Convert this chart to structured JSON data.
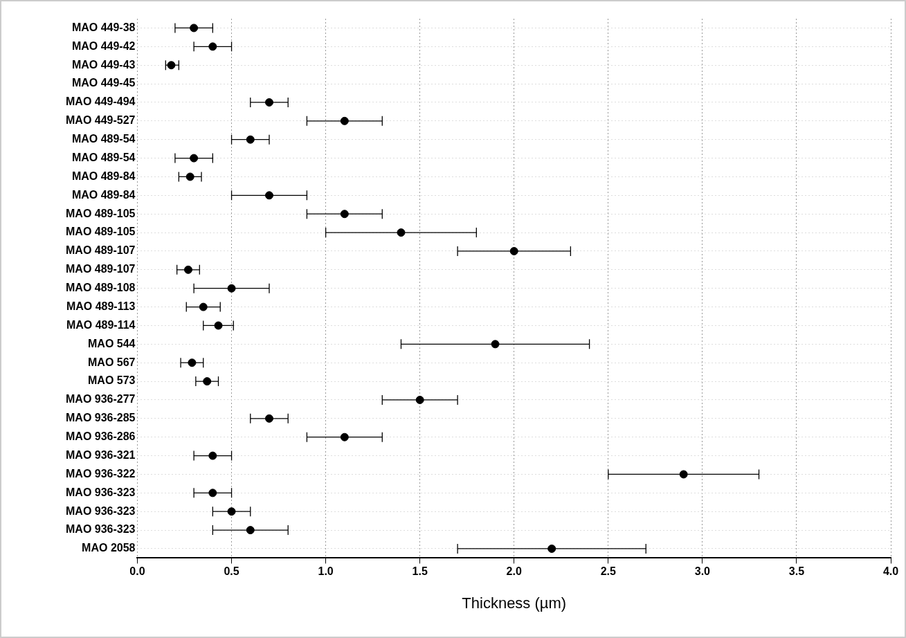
{
  "chart_data": {
    "type": "scatter",
    "orientation": "horizontal",
    "xlabel": "Thickness (µm)",
    "categories": [
      "MAO 449-38",
      "MAO 449-42",
      "MAO 449-43",
      "MAO 449-45",
      "MAO 449-494",
      "MAO 449-527",
      "MAO 489-54",
      "MAO 489-54",
      "MAO 489-84",
      "MAO 489-84",
      "MAO 489-105",
      "MAO 489-105",
      "MAO 489-107",
      "MAO 489-107",
      "MAO 489-108",
      "MAO 489-113",
      "MAO 489-114",
      "MAO 544",
      "MAO 567",
      "MAO 573",
      "MAO 936-277",
      "MAO 936-285",
      "MAO 936-286",
      "MAO 936-321",
      "MAO 936-322",
      "MAO 936-323",
      "MAO 936-323",
      "MAO 936-323",
      "MAO 2058"
    ],
    "values": [
      0.3,
      0.4,
      0.18,
      null,
      0.7,
      1.1,
      0.6,
      0.3,
      0.28,
      0.7,
      1.1,
      1.4,
      2.0,
      0.27,
      0.5,
      0.35,
      0.43,
      1.9,
      0.29,
      0.37,
      1.5,
      0.7,
      1.1,
      0.4,
      2.9,
      0.4,
      0.5,
      0.6,
      2.2
    ],
    "errors": [
      [
        0.2,
        0.4
      ],
      [
        0.3,
        0.5
      ],
      [
        0.15,
        0.22
      ],
      null,
      [
        0.6,
        0.8
      ],
      [
        0.9,
        1.3
      ],
      [
        0.5,
        0.7
      ],
      [
        0.2,
        0.4
      ],
      [
        0.22,
        0.34
      ],
      [
        0.5,
        0.9
      ],
      [
        0.9,
        1.3
      ],
      [
        1.0,
        1.8
      ],
      [
        1.7,
        2.3
      ],
      [
        0.21,
        0.33
      ],
      [
        0.3,
        0.7
      ],
      [
        0.26,
        0.44
      ],
      [
        0.35,
        0.51
      ],
      [
        1.4,
        2.4
      ],
      [
        0.23,
        0.35
      ],
      [
        0.31,
        0.43
      ],
      [
        1.3,
        1.7
      ],
      [
        0.6,
        0.8
      ],
      [
        0.9,
        1.3
      ],
      [
        0.3,
        0.5
      ],
      [
        2.5,
        3.3
      ],
      [
        0.3,
        0.5
      ],
      [
        0.4,
        0.6
      ],
      [
        0.4,
        0.8
      ],
      [
        1.7,
        2.7
      ]
    ],
    "color": "#000000",
    "marker": "circle",
    "grid": true,
    "xlim": [
      0,
      4
    ],
    "xticks": [
      {
        "value": 0,
        "label": "0.0"
      },
      {
        "value": 0.5,
        "label": "0.5"
      },
      {
        "value": 1,
        "label": "1.0"
      },
      {
        "value": 1.5,
        "label": "1.5"
      },
      {
        "value": 2,
        "label": "2.0"
      },
      {
        "value": 2.5,
        "label": "2.5"
      },
      {
        "value": 3,
        "label": "3.0"
      },
      {
        "value": 3.5,
        "label": "3.5"
      },
      {
        "value": 4,
        "label": "4.0"
      }
    ]
  }
}
